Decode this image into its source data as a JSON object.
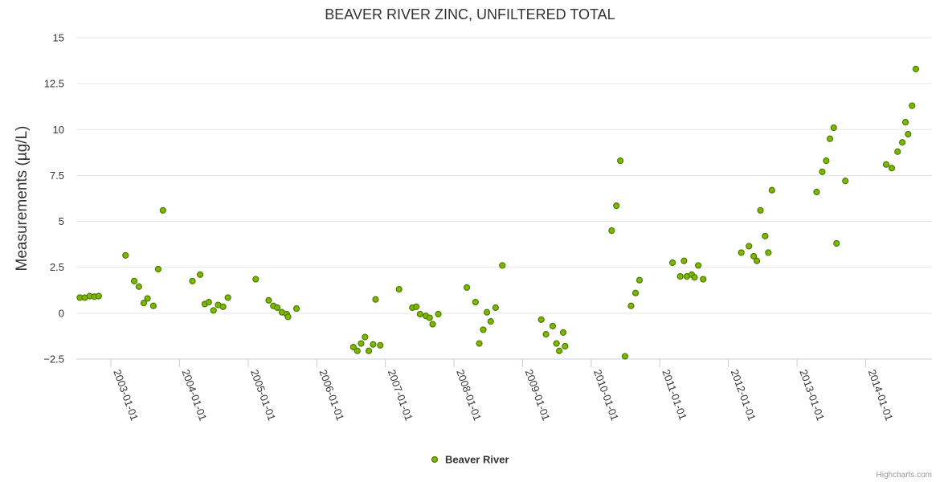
{
  "chart_data": {
    "type": "scatter",
    "title": "BEAVER RIVER ZINC, UNFILTERED TOTAL",
    "ylabel": "Measurements (µg/L)",
    "xlabel": "",
    "ylim": [
      -2.5,
      15
    ],
    "yticks": [
      -2.5,
      0,
      2.5,
      5,
      7.5,
      10,
      12.5,
      15
    ],
    "ytick_labels": [
      "−2.5",
      "0",
      "2.5",
      "5",
      "7.5",
      "10",
      "12.5",
      "15"
    ],
    "x_type": "date",
    "xlim": [
      "2002-07-01",
      "2014-12-20"
    ],
    "xticks": [
      "2003-01-01",
      "2004-01-01",
      "2005-01-01",
      "2006-01-01",
      "2007-01-01",
      "2008-01-01",
      "2009-01-01",
      "2010-01-01",
      "2011-01-01",
      "2012-01-01",
      "2013-01-01",
      "2014-01-01"
    ],
    "grid": true,
    "legend_position": "bottom-center",
    "series": [
      {
        "name": "Beaver River",
        "color": "#7cb800",
        "points": [
          [
            "2002-07-20",
            0.85
          ],
          [
            "2002-08-15",
            0.85
          ],
          [
            "2002-09-10",
            0.93
          ],
          [
            "2002-10-05",
            0.9
          ],
          [
            "2002-10-28",
            0.93
          ],
          [
            "2003-03-20",
            3.15
          ],
          [
            "2003-05-05",
            1.75
          ],
          [
            "2003-05-30",
            1.45
          ],
          [
            "2003-06-25",
            0.55
          ],
          [
            "2003-07-15",
            0.8
          ],
          [
            "2003-08-15",
            0.4
          ],
          [
            "2003-09-10",
            2.4
          ],
          [
            "2003-10-05",
            5.6
          ],
          [
            "2004-03-10",
            1.75
          ],
          [
            "2004-04-20",
            2.1
          ],
          [
            "2004-05-15",
            0.5
          ],
          [
            "2004-06-05",
            0.6
          ],
          [
            "2004-06-30",
            0.15
          ],
          [
            "2004-07-25",
            0.45
          ],
          [
            "2004-08-20",
            0.35
          ],
          [
            "2004-09-15",
            0.85
          ],
          [
            "2005-02-10",
            1.85
          ],
          [
            "2005-04-20",
            0.7
          ],
          [
            "2005-05-15",
            0.4
          ],
          [
            "2005-06-05",
            0.3
          ],
          [
            "2005-06-30",
            0.05
          ],
          [
            "2005-07-25",
            -0.05
          ],
          [
            "2005-08-01",
            -0.2
          ],
          [
            "2005-09-15",
            0.25
          ],
          [
            "2006-07-15",
            -1.85
          ],
          [
            "2006-08-05",
            -2.05
          ],
          [
            "2006-08-25",
            -1.65
          ],
          [
            "2006-09-15",
            -1.3
          ],
          [
            "2006-10-05",
            -2.05
          ],
          [
            "2006-10-28",
            -1.7
          ],
          [
            "2006-11-10",
            0.75
          ],
          [
            "2006-12-05",
            -1.75
          ],
          [
            "2007-03-15",
            1.3
          ],
          [
            "2007-05-25",
            0.3
          ],
          [
            "2007-06-15",
            0.35
          ],
          [
            "2007-07-05",
            -0.05
          ],
          [
            "2007-08-05",
            -0.15
          ],
          [
            "2007-08-25",
            -0.25
          ],
          [
            "2007-09-10",
            -0.6
          ],
          [
            "2007-10-10",
            -0.05
          ],
          [
            "2008-03-10",
            1.4
          ],
          [
            "2008-04-25",
            0.6
          ],
          [
            "2008-05-15",
            -1.65
          ],
          [
            "2008-06-05",
            -0.9
          ],
          [
            "2008-06-25",
            0.05
          ],
          [
            "2008-07-15",
            -0.45
          ],
          [
            "2008-08-10",
            0.3
          ],
          [
            "2008-09-15",
            2.6
          ],
          [
            "2009-04-10",
            -0.35
          ],
          [
            "2009-05-05",
            -1.15
          ],
          [
            "2009-06-10",
            -0.7
          ],
          [
            "2009-06-30",
            -1.65
          ],
          [
            "2009-07-15",
            -2.05
          ],
          [
            "2009-08-05",
            -1.05
          ],
          [
            "2009-08-15",
            -1.8
          ],
          [
            "2010-04-20",
            4.5
          ],
          [
            "2010-05-15",
            5.85
          ],
          [
            "2010-06-05",
            8.3
          ],
          [
            "2010-06-30",
            -2.35
          ],
          [
            "2010-08-01",
            0.4
          ],
          [
            "2010-08-25",
            1.1
          ],
          [
            "2010-09-15",
            1.8
          ],
          [
            "2011-03-10",
            2.75
          ],
          [
            "2011-04-20",
            2.0
          ],
          [
            "2011-05-10",
            2.85
          ],
          [
            "2011-05-25",
            2.0
          ],
          [
            "2011-06-20",
            2.1
          ],
          [
            "2011-07-05",
            1.95
          ],
          [
            "2011-07-25",
            2.6
          ],
          [
            "2011-08-20",
            1.85
          ],
          [
            "2012-03-10",
            3.3
          ],
          [
            "2012-04-20",
            3.65
          ],
          [
            "2012-05-15",
            3.1
          ],
          [
            "2012-06-01",
            2.85
          ],
          [
            "2012-06-20",
            5.6
          ],
          [
            "2012-07-15",
            4.2
          ],
          [
            "2012-08-01",
            3.3
          ],
          [
            "2012-08-20",
            6.7
          ],
          [
            "2013-04-15",
            6.6
          ],
          [
            "2013-05-15",
            7.7
          ],
          [
            "2013-06-05",
            8.3
          ],
          [
            "2013-06-25",
            9.5
          ],
          [
            "2013-07-15",
            10.1
          ],
          [
            "2013-07-30",
            3.8
          ],
          [
            "2013-09-15",
            7.2
          ],
          [
            "2014-04-20",
            8.1
          ],
          [
            "2014-05-20",
            7.9
          ],
          [
            "2014-06-20",
            8.8
          ],
          [
            "2014-07-15",
            9.3
          ],
          [
            "2014-08-01",
            10.4
          ],
          [
            "2014-08-15",
            9.75
          ],
          [
            "2014-09-05",
            11.3
          ],
          [
            "2014-09-25",
            13.3
          ]
        ]
      }
    ],
    "credits": "Highcharts.com"
  }
}
